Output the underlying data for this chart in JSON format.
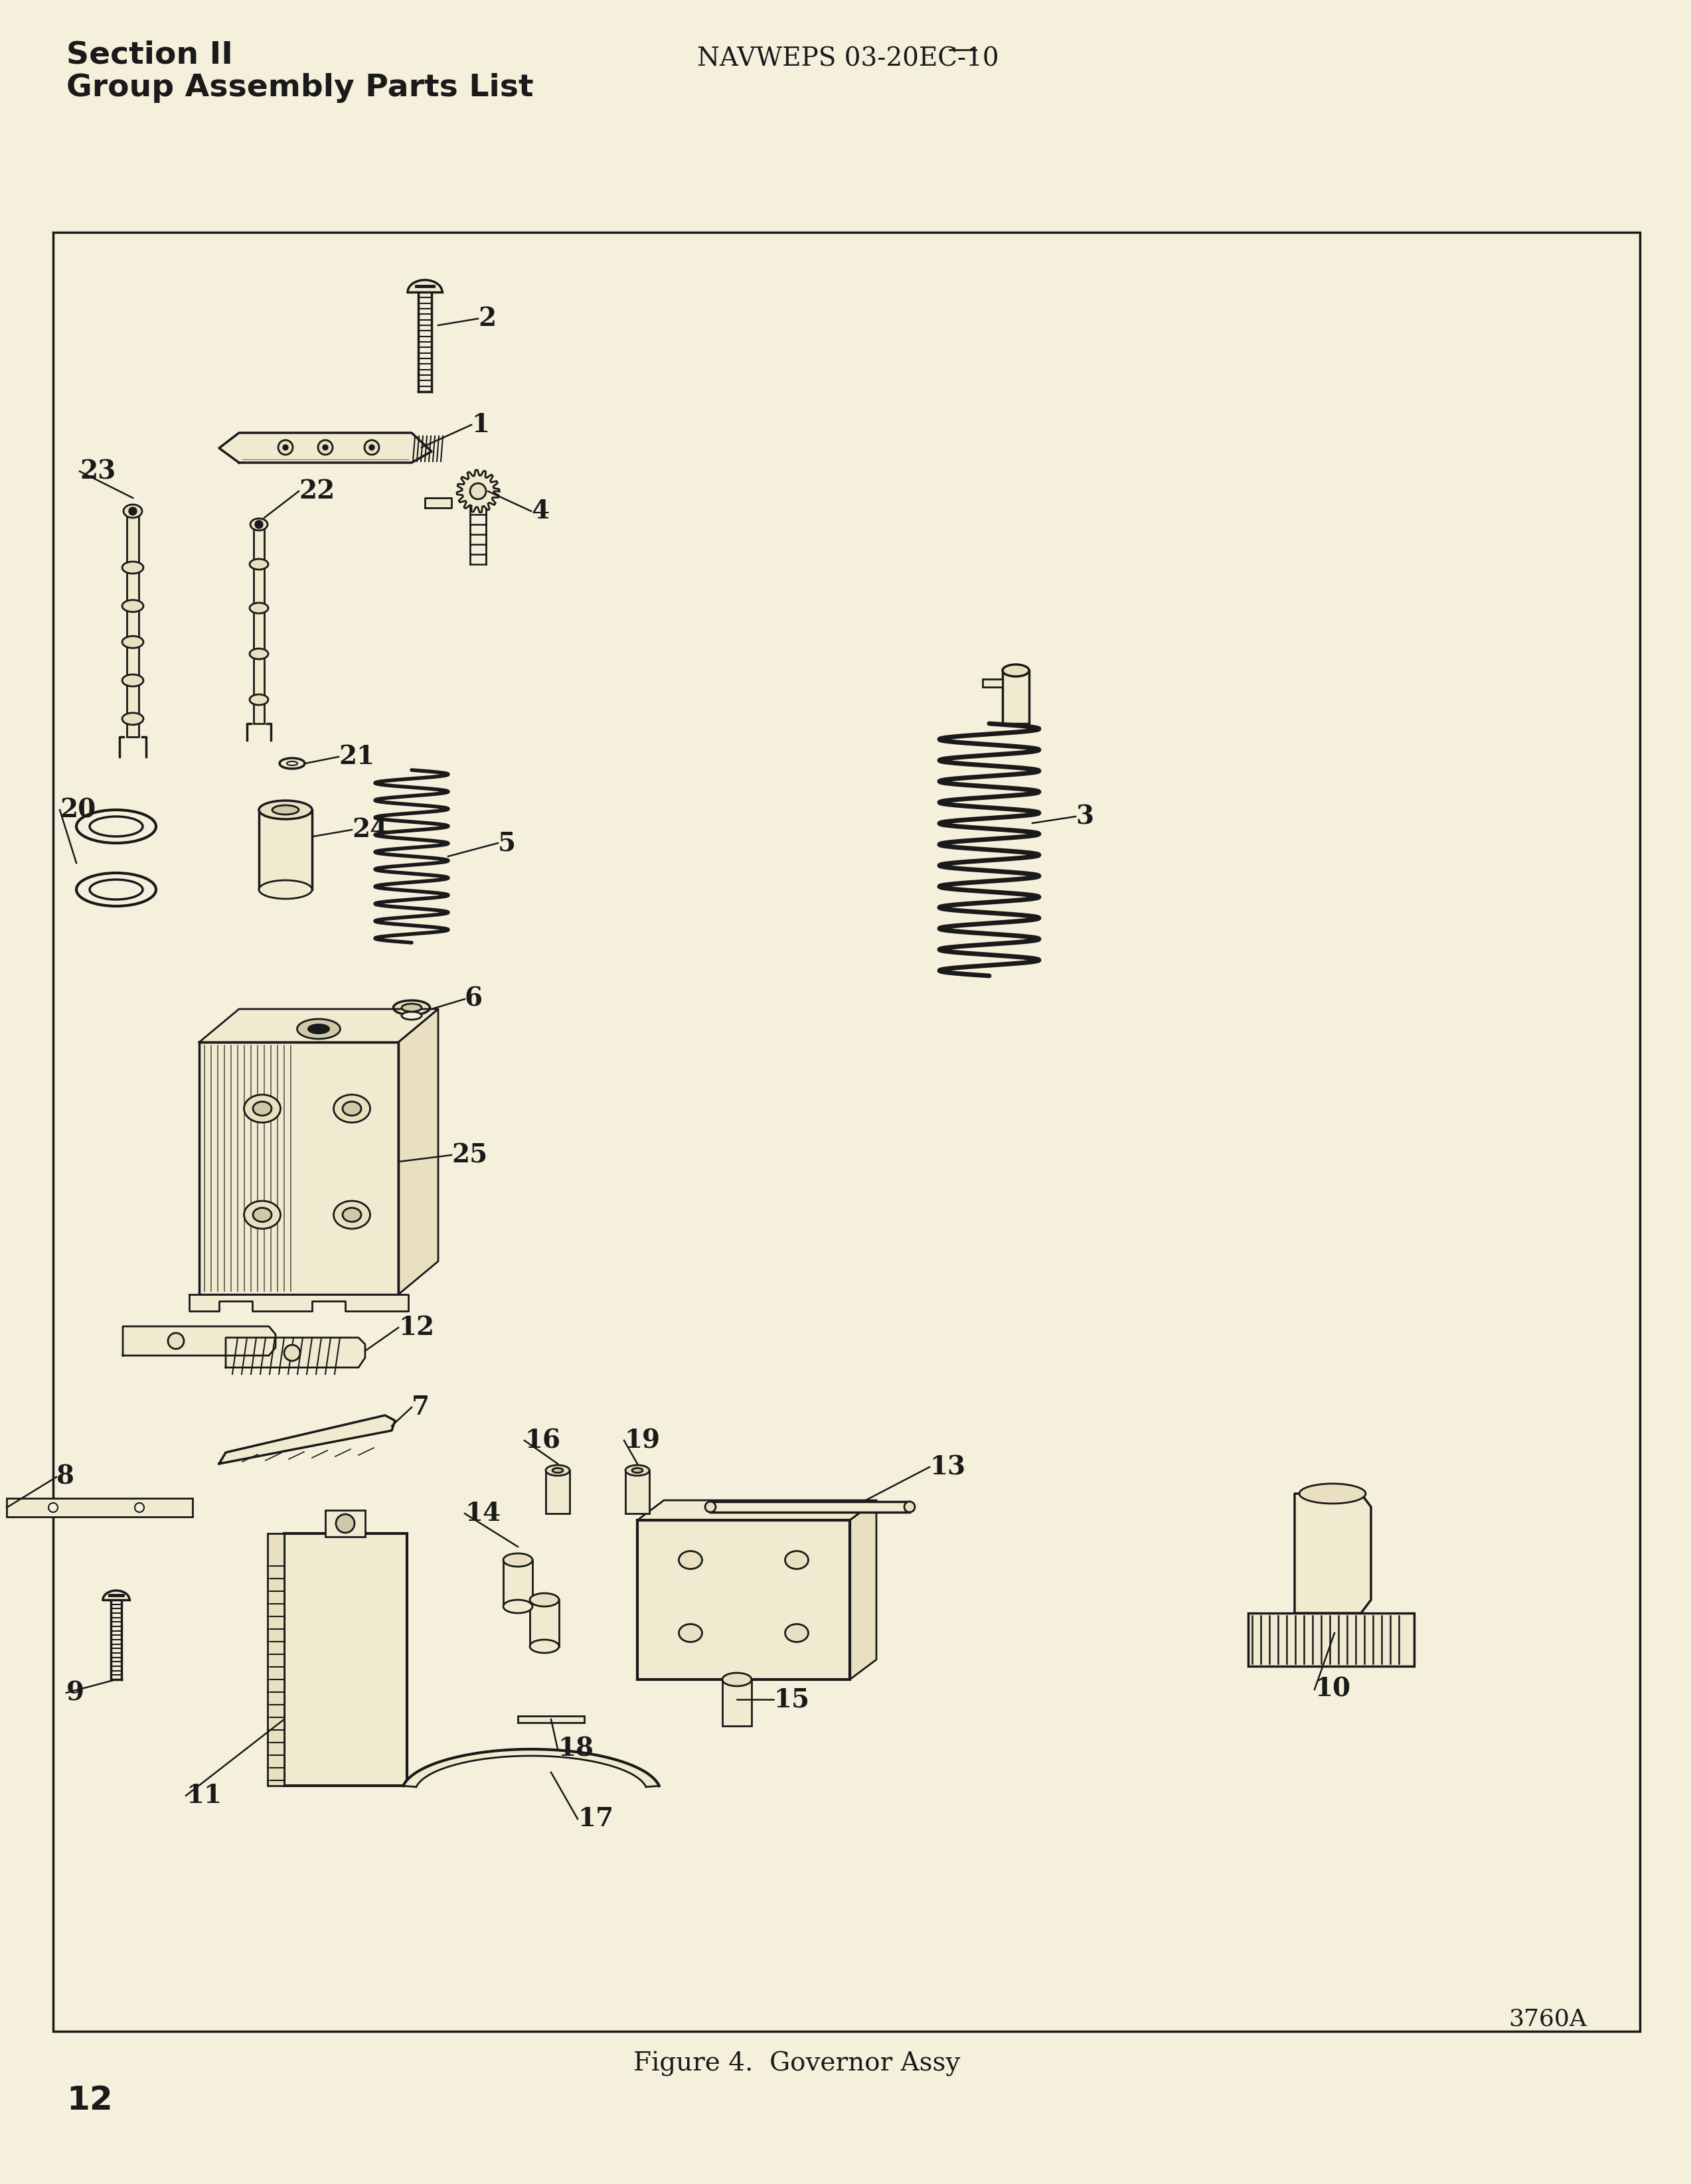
{
  "page_bg": "#F5F0DC",
  "text_color": "#1a1a1a",
  "line_color": "#1a1a1a",
  "fill_light": "#F0EAD0",
  "fill_mid": "#E8E0C0",
  "fill_dark": "#D0C8A8",
  "header_line1": "Section II",
  "header_line2": "Group Assembly Parts List",
  "header_center": "NAVWEPS 03-20EC-10",
  "caption": "Figure 4.  Governor Assy",
  "page_num": "12",
  "fig_id": "3760A"
}
